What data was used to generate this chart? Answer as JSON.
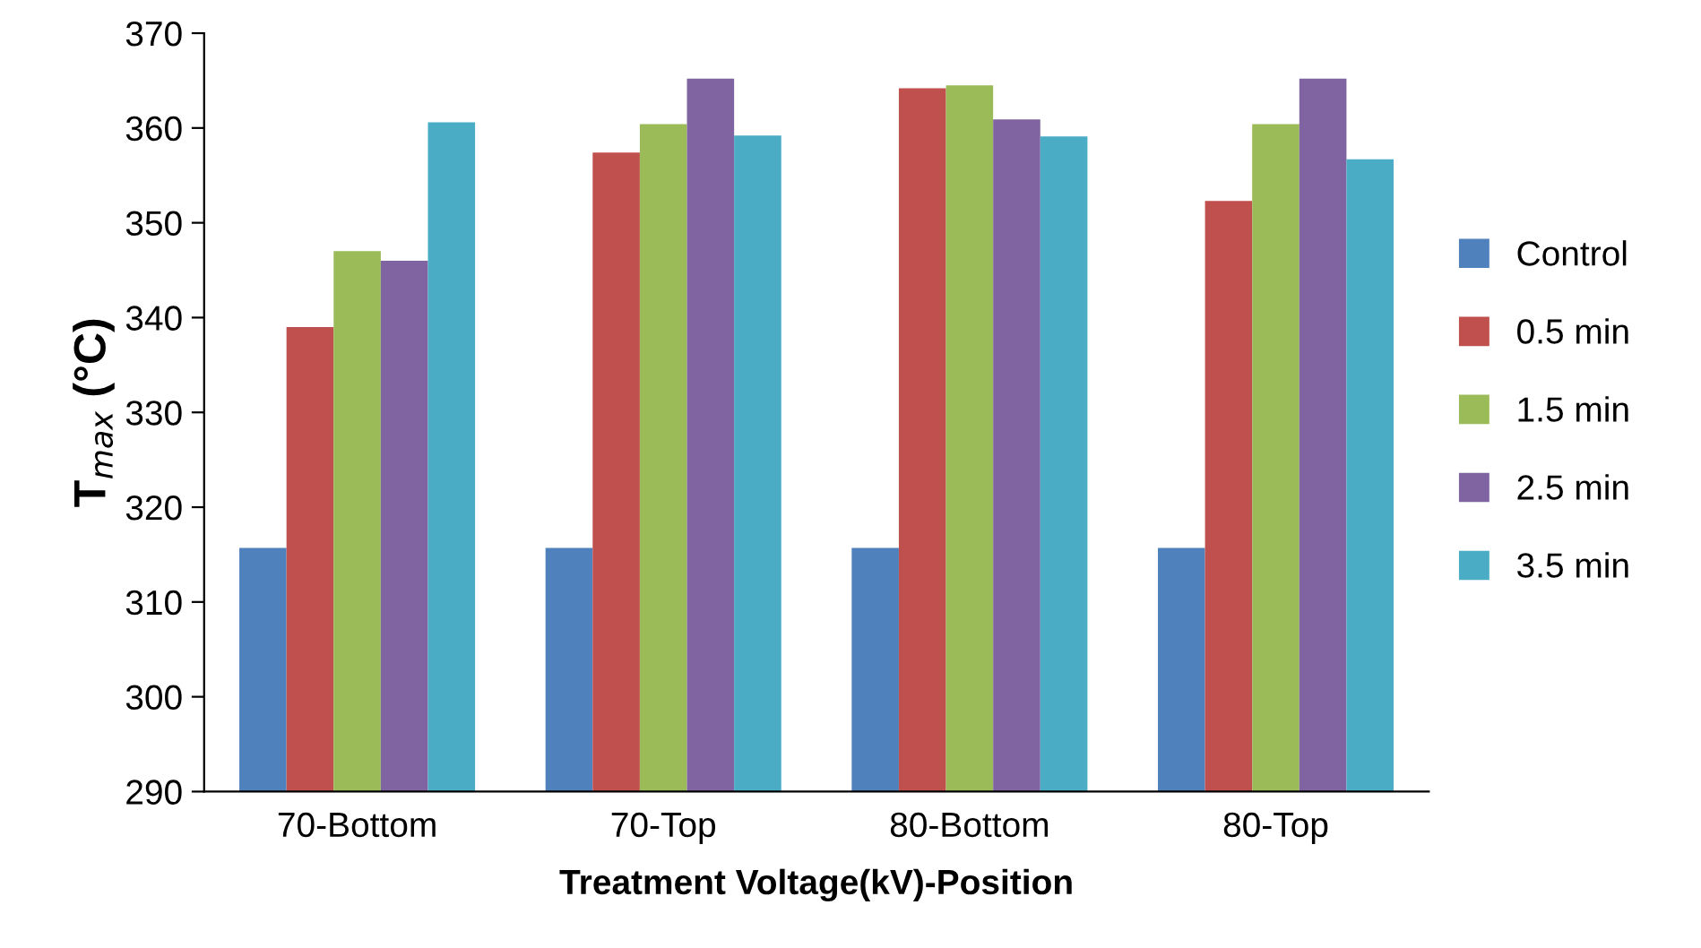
{
  "chart_data": {
    "type": "bar",
    "xlabel": "Treatment Voltage(kV)-Position",
    "ylabel": "T$_{max}$ (°C)",
    "categories": [
      "70-Bottom",
      "70-Top",
      "80-Bottom",
      "80-Top"
    ],
    "series": [
      {
        "name": "Control",
        "color": "#4f81bd",
        "values": [
          315.7,
          315.7,
          315.7,
          315.7
        ]
      },
      {
        "name": "0.5 min",
        "color": "#c0504d",
        "values": [
          339,
          357.4,
          364.2,
          352.3
        ]
      },
      {
        "name": "1.5 min",
        "color": "#9bbb59",
        "values": [
          347,
          360.4,
          364.5,
          360.4
        ]
      },
      {
        "name": "2.5 min",
        "color": "#8064a2",
        "values": [
          346,
          365.2,
          360.9,
          365.2
        ]
      },
      {
        "name": "3.5 min",
        "color": "#4bacc6",
        "values": [
          360.6,
          359.2,
          359.1,
          356.7
        ]
      }
    ],
    "ylim": [
      290,
      370
    ],
    "yticks": [
      290,
      300,
      310,
      320,
      330,
      340,
      350,
      360,
      370
    ],
    "grid": false,
    "legend": "right"
  }
}
